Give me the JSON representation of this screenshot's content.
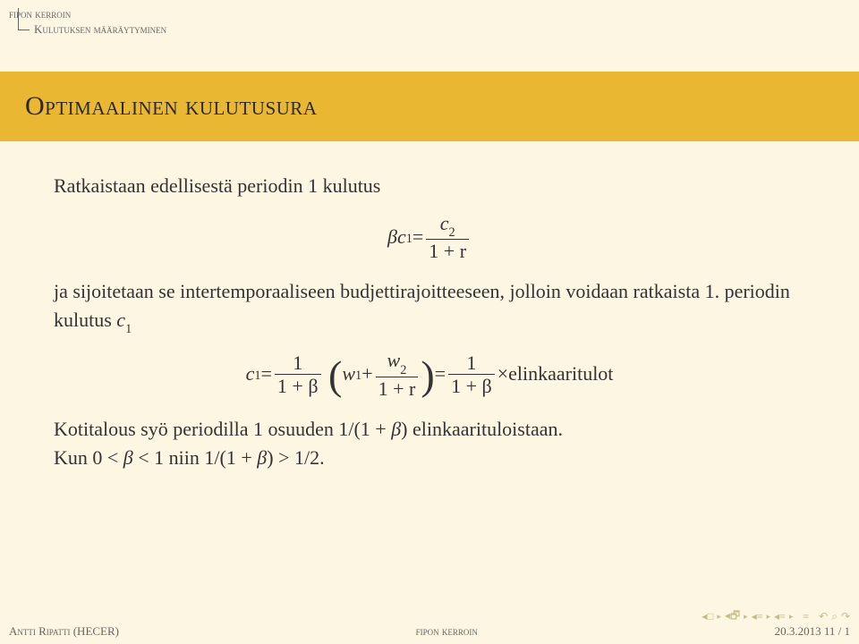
{
  "breadcrumb": {
    "top": "fipon kerroin",
    "sub": "Kulutuksen määräytyminen"
  },
  "title": "Optimaalinen kulutusura",
  "body": {
    "sentence1": "Ratkaistaan edellisestä periodin 1 kulutus",
    "eq1": {
      "lhs_beta": "β",
      "lhs_c": "c",
      "lhs_sub": "1",
      "eq": " = ",
      "num_c": "c",
      "num_sub": "2",
      "den": "1 + r"
    },
    "sentence2a": "ja sijoitetaan se intertemporaaliseen budjettirajoitteeseen, jolloin voidaan ratkaista 1. periodin kulutus ",
    "sentence2b_c": "c",
    "sentence2b_sub": "1",
    "eq2": {
      "c": "c",
      "c_sub": "1",
      "eq": " = ",
      "f1_num": "1",
      "f1_den": "1 + β",
      "w1": "w",
      "w1_sub": "1",
      "plus": " + ",
      "f2_num_w": "w",
      "f2_num_sub": "2",
      "f2_den": "1 + r",
      "eq2": " = ",
      "f3_num": "1",
      "f3_den": "1 + β",
      "times": " × ",
      "elin": "elinkaaritulot"
    },
    "sentence3a": "Kotitalous syö periodilla 1 osuuden 1/(1 + ",
    "sentence3b": "β",
    "sentence3c": ") elinkaarituloistaan.",
    "sentence4a": "Kun 0 < ",
    "sentence4b": "β",
    "sentence4c": " < 1 niin 1/(1 + ",
    "sentence4d": "β",
    "sentence4e": ") > 1/2."
  },
  "footer": {
    "left": "Antti Ripatti (HECER)",
    "center": "fipon kerroin",
    "right": "20.3.2013    11 / 1"
  }
}
